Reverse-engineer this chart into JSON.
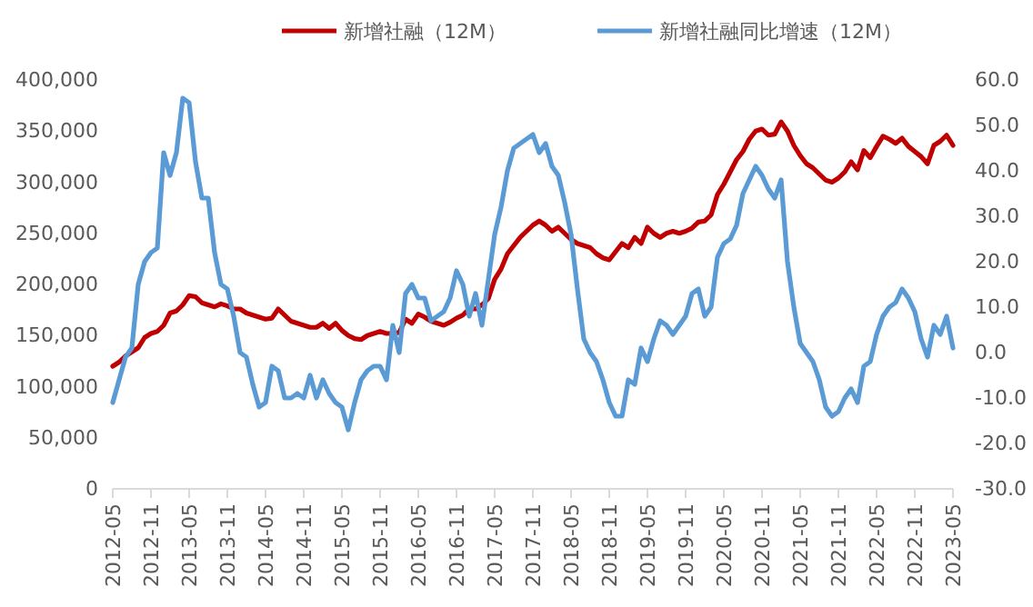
{
  "chart_data": {
    "type": "line",
    "categories": [
      "2012-05",
      null,
      null,
      null,
      null,
      null,
      "2012-11",
      null,
      null,
      null,
      null,
      null,
      "2013-05",
      null,
      null,
      null,
      null,
      null,
      "2013-11",
      null,
      null,
      null,
      null,
      null,
      "2014-05",
      null,
      null,
      null,
      null,
      null,
      "2014-11",
      null,
      null,
      null,
      null,
      null,
      "2015-05",
      null,
      null,
      null,
      null,
      null,
      "2015-11",
      null,
      null,
      null,
      null,
      null,
      "2016-05",
      null,
      null,
      null,
      null,
      null,
      "2016-11",
      null,
      null,
      null,
      null,
      null,
      "2017-05",
      null,
      null,
      null,
      null,
      null,
      "2017-11",
      null,
      null,
      null,
      null,
      null,
      "2018-05",
      null,
      null,
      null,
      null,
      null,
      "2018-11",
      null,
      null,
      null,
      null,
      null,
      "2019-05",
      null,
      null,
      null,
      null,
      null,
      "2019-11",
      null,
      null,
      null,
      null,
      null,
      "2020-05",
      null,
      null,
      null,
      null,
      null,
      "2020-11",
      null,
      null,
      null,
      null,
      null,
      "2021-05",
      null,
      null,
      null,
      null,
      null,
      "2021-11",
      null,
      null,
      null,
      null,
      null,
      "2022-05",
      null,
      null,
      null,
      null,
      null,
      "2022-11",
      null,
      null,
      null,
      null,
      null,
      "2023-05"
    ],
    "series": [
      {
        "name": "新增社融（12M）",
        "color": "#c00000",
        "values": [
          120000,
          124000,
          130000,
          134000,
          138000,
          148000,
          152000,
          154000,
          160000,
          172000,
          174000,
          180000,
          189000,
          188000,
          182000,
          180000,
          178000,
          181000,
          179000,
          176000,
          176000,
          172000,
          170000,
          168000,
          166000,
          167000,
          176000,
          170000,
          164000,
          162000,
          160000,
          158000,
          158000,
          162000,
          157000,
          162000,
          155000,
          150000,
          147000,
          146000,
          150000,
          152000,
          154000,
          152000,
          152000,
          153000,
          166000,
          162000,
          171000,
          168000,
          164000,
          162000,
          160000,
          163000,
          167000,
          170000,
          176000,
          176000,
          180000,
          186000,
          205000,
          215000,
          230000,
          238000,
          246000,
          252000,
          258000,
          262000,
          258000,
          252000,
          256000,
          250000,
          244000,
          240000,
          238000,
          236000,
          230000,
          226000,
          224000,
          232000,
          240000,
          236000,
          246000,
          240000,
          256000,
          250000,
          246000,
          250000,
          252000,
          250000,
          252000,
          255000,
          261000,
          262000,
          268000,
          288000,
          298000,
          310000,
          322000,
          330000,
          342000,
          350000,
          352000,
          346000,
          347000,
          359000,
          350000,
          336000,
          326000,
          318000,
          314000,
          308000,
          302000,
          300000,
          304000,
          310000,
          320000,
          312000,
          331000,
          324000,
          335000,
          345000,
          342000,
          338000,
          343000,
          335000,
          330000,
          325000,
          318000,
          336000,
          340000,
          346000,
          336000
        ]
      },
      {
        "name": "新增社融同比增速（12M）",
        "color": "#5b9bd5",
        "axis": "y2",
        "values": [
          -11,
          -6,
          -1,
          1,
          15,
          20,
          22,
          23,
          44,
          39,
          44,
          56,
          55,
          42,
          34,
          34,
          22,
          15,
          14,
          8,
          0,
          -1,
          -7,
          -12,
          -11,
          -3,
          -4,
          -10,
          -10,
          -9,
          -10,
          -5,
          -10,
          -6,
          -9,
          -11,
          -12,
          -17,
          -11,
          -6,
          -4,
          -3,
          -3,
          -6,
          6,
          0,
          13,
          15,
          12,
          12,
          7,
          8,
          9,
          12,
          18,
          15,
          8,
          13,
          6,
          16,
          26,
          32,
          40,
          45,
          46,
          47,
          48,
          44,
          46,
          41,
          39,
          33,
          26,
          14,
          3,
          0,
          -2,
          -6,
          -11,
          -14,
          -14,
          -6,
          -7,
          1,
          -2,
          3,
          7,
          6,
          4,
          6,
          8,
          13,
          14,
          8,
          10,
          21,
          24,
          25,
          28,
          35,
          38,
          41,
          39,
          36,
          34,
          38,
          20,
          10,
          2,
          0,
          -2,
          -6,
          -12,
          -14,
          -13,
          -10,
          -8,
          -11,
          -3,
          -2,
          4,
          8,
          10,
          11,
          14,
          12,
          9,
          3,
          -1,
          6,
          4,
          8,
          1
        ]
      }
    ],
    "ylim": [
      0,
      400000
    ],
    "yticks": [
      0,
      {
        "value": 50000,
        "label": "50,000"
      },
      {
        "value": 100000,
        "label": "100,000"
      },
      {
        "value": 150000,
        "label": "150,000"
      },
      {
        "value": 200000,
        "label": "200,000"
      },
      {
        "value": 250000,
        "label": "250,000"
      },
      {
        "value": 300000,
        "label": "300,000"
      },
      {
        "value": 350000,
        "label": "350,000"
      },
      {
        "value": 400000,
        "label": "400,000"
      }
    ],
    "y2lim": [
      -30,
      60
    ],
    "y2ticks": [
      {
        "value": -30,
        "label": "-30.0"
      },
      {
        "value": -20,
        "label": "-20.0"
      },
      {
        "value": -10,
        "label": "-10.0"
      },
      {
        "value": 0,
        "label": "0.0"
      },
      {
        "value": 10,
        "label": "10.0"
      },
      {
        "value": 20,
        "label": "20.0"
      },
      {
        "value": 30,
        "label": "30.0"
      },
      {
        "value": 40,
        "label": "40.0"
      },
      {
        "value": 50,
        "label": "50.0"
      },
      {
        "value": 60,
        "label": "60.0"
      }
    ],
    "legend": "top",
    "grid": false
  }
}
